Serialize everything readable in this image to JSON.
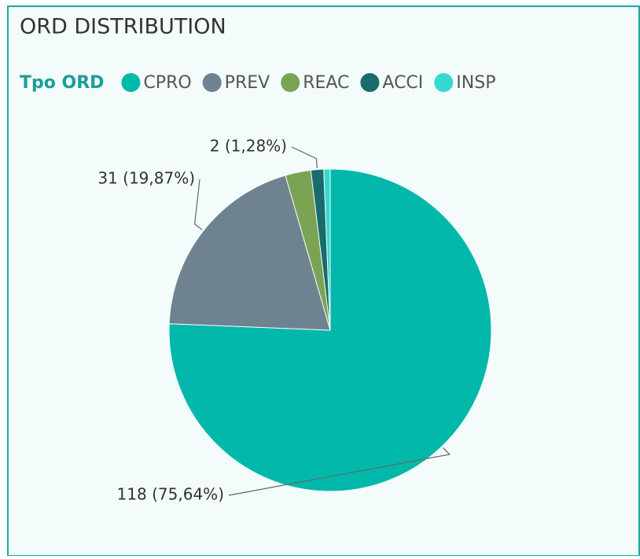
{
  "chart_data": {
    "type": "pie",
    "title": "ORD DISTRIBUTION",
    "legend_title": "Tpo ORD",
    "categories": [
      "CPRO",
      "PREV",
      "REAC",
      "ACCI",
      "INSP"
    ],
    "values": [
      118,
      31,
      4,
      2,
      1
    ],
    "value_labels": [
      "118 (75,64%)",
      "31 (19,87%)",
      null,
      "2 (1,28%)",
      null
    ],
    "colors": [
      "#01b8aa",
      "#6f8290",
      "#7aa354",
      "#1a6b6b",
      "#36d8cf"
    ],
    "legend": "top-left"
  }
}
